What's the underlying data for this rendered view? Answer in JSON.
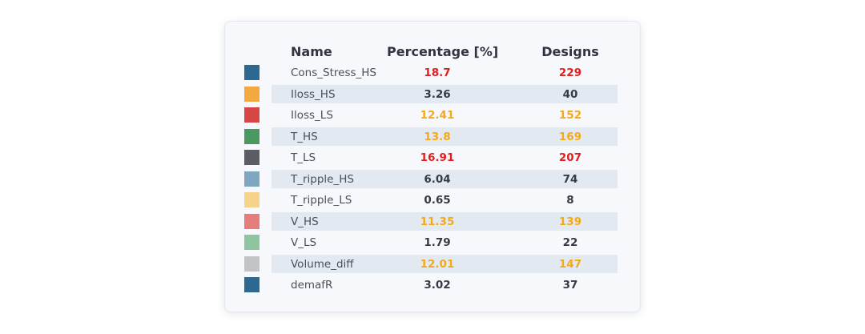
{
  "chart_data": {
    "type": "table",
    "columns": [
      "Name",
      "Percentage [%]",
      "Designs"
    ],
    "rows": [
      {
        "name": "Cons_Stress_HS",
        "percentage": "18.7",
        "designs": "229",
        "swatch": "#2d6890",
        "highlight": "red"
      },
      {
        "name": "Iloss_HS",
        "percentage": "3.26",
        "designs": "40",
        "swatch": "#f2aa40",
        "highlight": "none"
      },
      {
        "name": "Iloss_LS",
        "percentage": "12.41",
        "designs": "152",
        "swatch": "#d94545",
        "highlight": "orange"
      },
      {
        "name": "T_HS",
        "percentage": "13.8",
        "designs": "169",
        "swatch": "#4a9960",
        "highlight": "orange"
      },
      {
        "name": "T_LS",
        "percentage": "16.91",
        "designs": "207",
        "swatch": "#5a5d63",
        "highlight": "red"
      },
      {
        "name": "T_ripple_HS",
        "percentage": "6.04",
        "designs": "74",
        "swatch": "#80a7c2",
        "highlight": "none"
      },
      {
        "name": "T_ripple_LS",
        "percentage": "0.65",
        "designs": "8",
        "swatch": "#f5d38a",
        "highlight": "none"
      },
      {
        "name": "V_HS",
        "percentage": "11.35",
        "designs": "139",
        "swatch": "#e67c7c",
        "highlight": "orange"
      },
      {
        "name": "V_LS",
        "percentage": "1.79",
        "designs": "22",
        "swatch": "#8fc4a0",
        "highlight": "none"
      },
      {
        "name": "Volume_diff",
        "percentage": "12.01",
        "designs": "147",
        "swatch": "#c1c3c7",
        "highlight": "orange"
      },
      {
        "name": "demafR",
        "percentage": "3.02",
        "designs": "37",
        "swatch": "#2d6890",
        "highlight": "none"
      }
    ],
    "colors": {
      "red": "#e02020",
      "orange": "#f5a818",
      "none": "#353a44"
    }
  }
}
